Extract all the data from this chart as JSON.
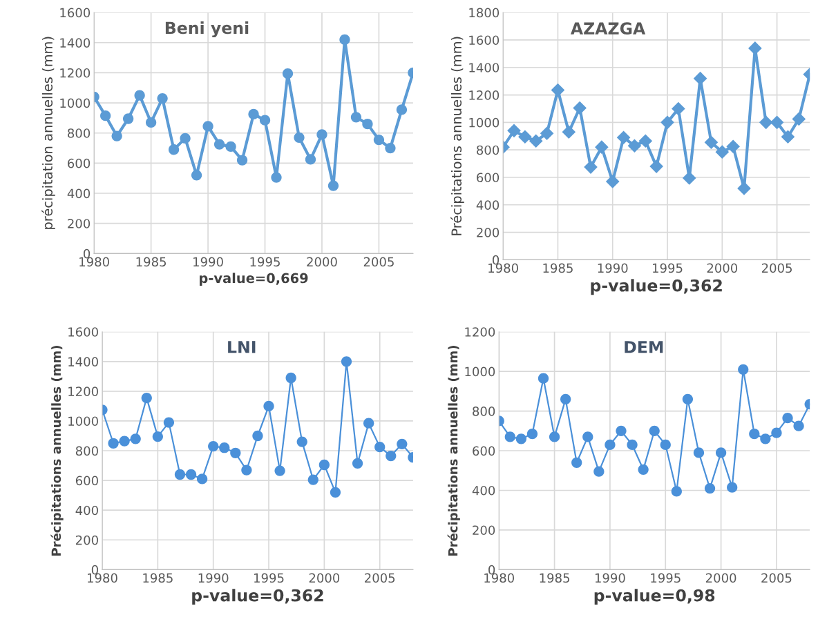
{
  "chart_data": [
    {
      "type": "line",
      "title": "Beni yeni",
      "xlabel": "p-value=0,669",
      "ylabel": "précipitation annuelles (mm)",
      "marker": "circle",
      "grid": true,
      "x": [
        1980,
        1981,
        1982,
        1983,
        1984,
        1985,
        1986,
        1987,
        1988,
        1989,
        1990,
        1991,
        1992,
        1993,
        1994,
        1995,
        1996,
        1997,
        1998,
        1999,
        2000,
        2001,
        2002,
        2003,
        2004,
        2005,
        2006,
        2007,
        2008
      ],
      "series": [
        {
          "color": "#5b9bd5",
          "values": [
            1040,
            915,
            780,
            895,
            1050,
            870,
            1030,
            690,
            765,
            520,
            845,
            725,
            710,
            620,
            925,
            885,
            505,
            1195,
            770,
            625,
            790,
            450,
            1420,
            905,
            860,
            755,
            700,
            955,
            1200
          ]
        }
      ],
      "xlim": [
        1980,
        2008
      ],
      "xticks": [
        1980,
        1985,
        1990,
        1995,
        2000,
        2005
      ],
      "ylim": [
        0,
        1600
      ],
      "yticks": [
        0,
        200,
        400,
        600,
        800,
        1000,
        1200,
        1400,
        1600
      ]
    },
    {
      "type": "line",
      "title": "AZAZGA",
      "xlabel": "p-value=0,362",
      "ylabel": "Précipitations annuelles (mm)",
      "marker": "diamond",
      "grid": true,
      "x": [
        1980,
        1981,
        1982,
        1983,
        1984,
        1985,
        1986,
        1987,
        1988,
        1989,
        1990,
        1991,
        1992,
        1993,
        1994,
        1995,
        1996,
        1997,
        1998,
        1999,
        2000,
        2001,
        2002,
        2003,
        2004,
        2005,
        2006,
        2007,
        2008
      ],
      "series": [
        {
          "color": "#5b9bd5",
          "values": [
            820,
            940,
            895,
            865,
            920,
            1235,
            930,
            1105,
            675,
            820,
            570,
            890,
            830,
            865,
            680,
            1000,
            1100,
            595,
            1320,
            855,
            785,
            825,
            520,
            1540,
            1000,
            1000,
            895,
            1025,
            1350
          ]
        }
      ],
      "xlim": [
        1980,
        2008
      ],
      "xticks": [
        1980,
        1985,
        1990,
        1995,
        2000,
        2005
      ],
      "ylim": [
        0,
        1800
      ],
      "yticks": [
        0,
        200,
        400,
        600,
        800,
        1000,
        1200,
        1400,
        1600,
        1800
      ]
    },
    {
      "type": "line",
      "title": "LNI",
      "xlabel": "p-value=0,362",
      "ylabel": "Précipitations annuelles (mm)",
      "marker": "circle",
      "grid": true,
      "x": [
        1980,
        1981,
        1982,
        1983,
        1984,
        1985,
        1986,
        1987,
        1988,
        1989,
        1990,
        1991,
        1992,
        1993,
        1994,
        1995,
        1996,
        1997,
        1998,
        1999,
        2000,
        2001,
        2002,
        2003,
        2004,
        2005,
        2006,
        2007,
        2008
      ],
      "series": [
        {
          "color": "#4a90d9",
          "values": [
            1075,
            850,
            865,
            880,
            1155,
            895,
            990,
            640,
            640,
            610,
            830,
            820,
            785,
            670,
            900,
            1100,
            665,
            1290,
            860,
            605,
            705,
            520,
            1400,
            715,
            985,
            825,
            765,
            845,
            755
          ]
        }
      ],
      "xlim": [
        1980,
        2008
      ],
      "xticks": [
        1980,
        1985,
        1990,
        1995,
        2000,
        2005
      ],
      "ylim": [
        0,
        1600
      ],
      "yticks": [
        0,
        200,
        400,
        600,
        800,
        1000,
        1200,
        1400,
        1600
      ]
    },
    {
      "type": "line",
      "title": "DEM",
      "xlabel": "p-value=0,98",
      "ylabel": "Précipitations annuelles (mm)",
      "marker": "circle",
      "grid": true,
      "x": [
        1980,
        1981,
        1982,
        1983,
        1984,
        1985,
        1986,
        1987,
        1988,
        1989,
        1990,
        1991,
        1992,
        1993,
        1994,
        1995,
        1996,
        1997,
        1998,
        1999,
        2000,
        2001,
        2002,
        2003,
        2004,
        2005,
        2006,
        2007,
        2008
      ],
      "series": [
        {
          "color": "#4a90d9",
          "values": [
            750,
            670,
            660,
            685,
            965,
            670,
            860,
            540,
            670,
            495,
            630,
            700,
            630,
            505,
            700,
            630,
            395,
            860,
            590,
            410,
            590,
            415,
            1010,
            685,
            660,
            690,
            765,
            725,
            835
          ]
        }
      ],
      "xlim": [
        1980,
        2008
      ],
      "xticks": [
        1980,
        1985,
        1990,
        1995,
        2000,
        2005
      ],
      "ylim": [
        0,
        1200
      ],
      "yticks": [
        0,
        200,
        400,
        600,
        800,
        1000,
        1200
      ]
    }
  ]
}
